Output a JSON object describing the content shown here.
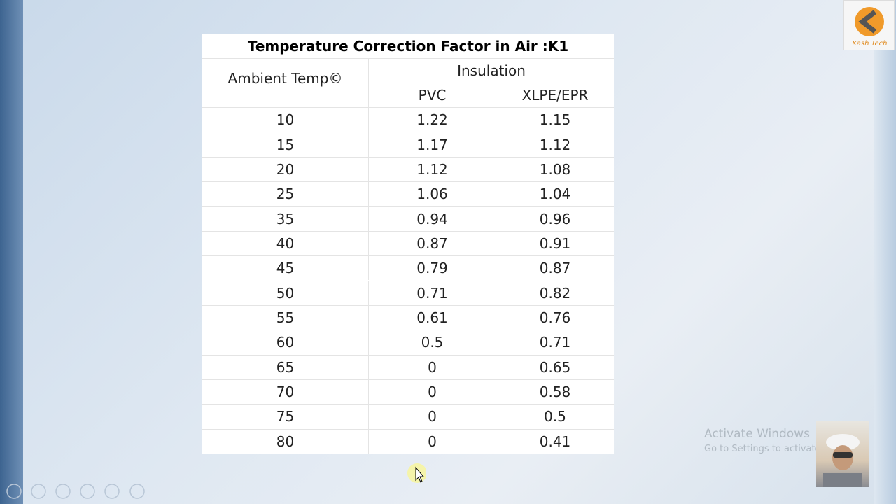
{
  "logo": {
    "text": "Kash Tech"
  },
  "table": {
    "title": "Temperature Correction Factor in Air :K1",
    "header": {
      "first": "Ambient Temp©",
      "group": "Insulation",
      "columns": [
        "PVC",
        "XLPE/EPR"
      ]
    },
    "rows": [
      [
        "10",
        "1.22",
        "1.15"
      ],
      [
        "15",
        "1.17",
        "1.12"
      ],
      [
        "20",
        "1.12",
        "1.08"
      ],
      [
        "25",
        "1.06",
        "1.04"
      ],
      [
        "35",
        "0.94",
        "0.96"
      ],
      [
        "40",
        "0.87",
        "0.91"
      ],
      [
        "45",
        "0.79",
        "0.87"
      ],
      [
        "50",
        "0.71",
        "0.82"
      ],
      [
        "55",
        "0.61",
        "0.76"
      ],
      [
        "60",
        "0.5",
        "0.71"
      ],
      [
        "65",
        "0",
        "0.65"
      ],
      [
        "70",
        "0",
        "0.58"
      ],
      [
        "75",
        "0",
        "0.5"
      ],
      [
        "80",
        "0",
        "0.41"
      ]
    ]
  },
  "watermark": {
    "title": "Activate Windows",
    "subtitle": "Go to Settings to activate Windows."
  }
}
